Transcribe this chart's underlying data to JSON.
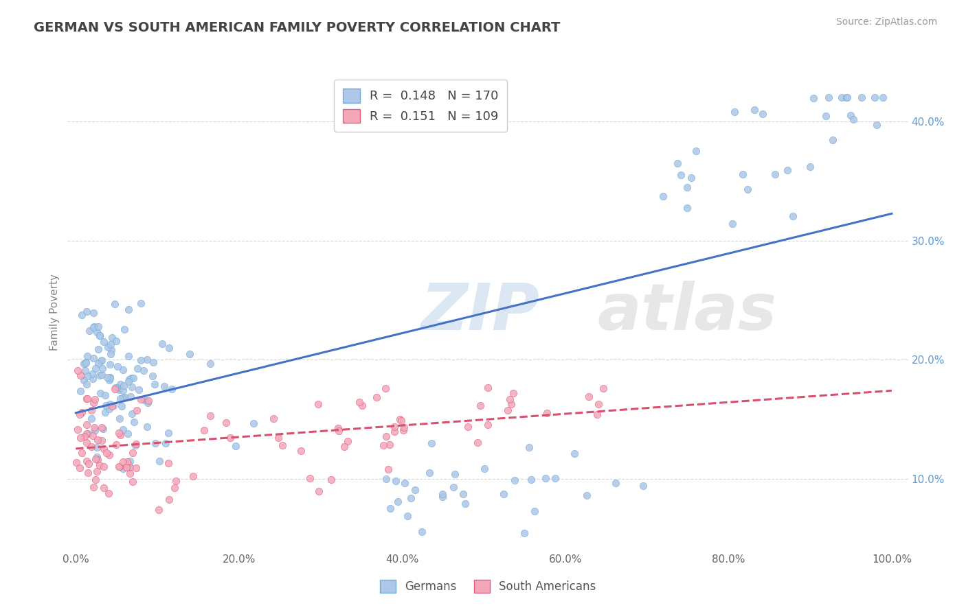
{
  "title": "GERMAN VS SOUTH AMERICAN FAMILY POVERTY CORRELATION CHART",
  "source_text": "Source: ZipAtlas.com",
  "ylabel": "Family Poverty",
  "watermark": "ZIPatlas",
  "x_ticks": [
    0.0,
    0.2,
    0.4,
    0.6,
    0.8,
    1.0
  ],
  "x_tick_labels": [
    "0.0%",
    "20.0%",
    "40.0%",
    "60.0%",
    "80.0%",
    "100.0%"
  ],
  "y_ticks": [
    0.1,
    0.2,
    0.3,
    0.4
  ],
  "right_y_tick_labels": [
    "10.0%",
    "20.0%",
    "30.0%",
    "40.0%"
  ],
  "xlim": [
    -0.01,
    1.02
  ],
  "ylim": [
    0.04,
    0.44
  ],
  "german_color": "#aec6e8",
  "german_edge": "#6baed6",
  "sa_color": "#f4a7b9",
  "sa_edge": "#e06080",
  "trend_german_color": "#4472c4",
  "trend_sa_color": "#d94f6e",
  "legend_label_german": "R =  0.148   N = 170",
  "legend_label_sa": "R =  0.151   N = 109",
  "legend_Germans": "Germans",
  "legend_SouthAmericans": "South Americans",
  "background_color": "#ffffff",
  "grid_color": "#cccccc"
}
